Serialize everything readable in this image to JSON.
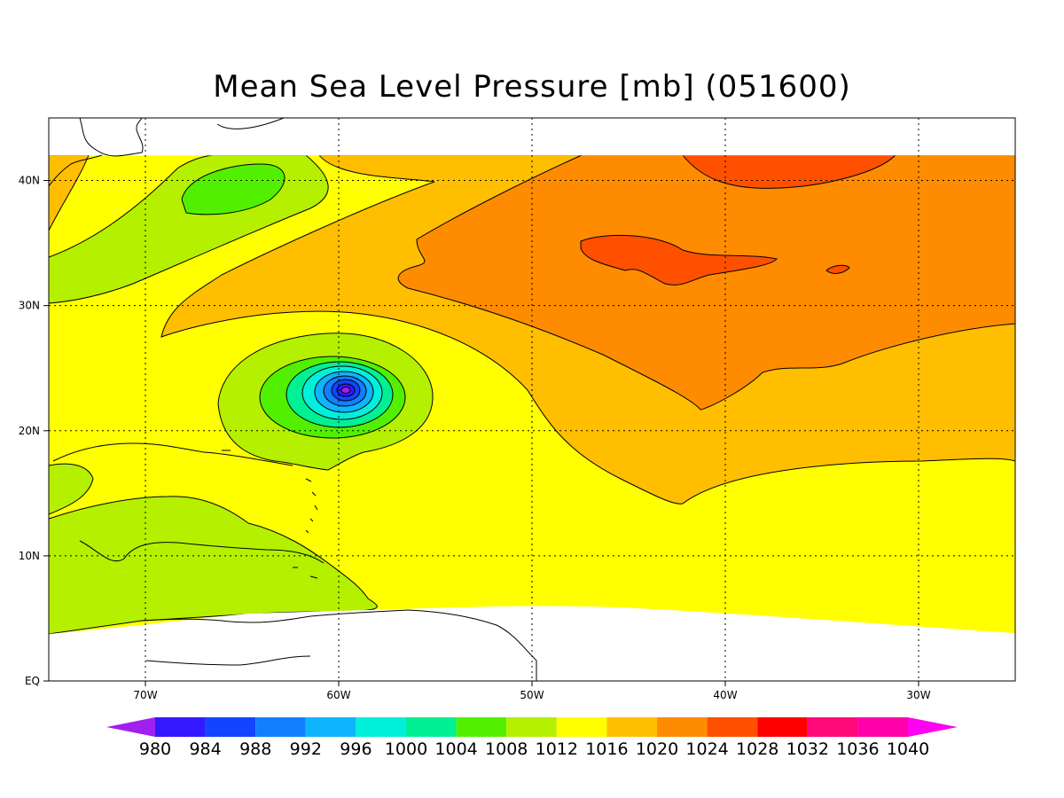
{
  "title": "Mean Sea Level Pressure [mb] (051600)",
  "map": {
    "lon_range": [
      -75,
      -25
    ],
    "lat_range": [
      0,
      45
    ],
    "data_lat_top": 42,
    "lat_ticks": [
      {
        "value": 0,
        "label": "EQ"
      },
      {
        "value": 10,
        "label": "10N"
      },
      {
        "value": 20,
        "label": "20N"
      },
      {
        "value": 30,
        "label": "30N"
      },
      {
        "value": 40,
        "label": "40N"
      }
    ],
    "lon_ticks": [
      {
        "value": -70,
        "label": "70W"
      },
      {
        "value": -60,
        "label": "60W"
      },
      {
        "value": -50,
        "label": "50W"
      },
      {
        "value": -40,
        "label": "40W"
      },
      {
        "value": -30,
        "label": "30W"
      }
    ],
    "grid": "dotted",
    "low_center": {
      "lon": -59.6,
      "lat": 23.1
    }
  },
  "colorbar": {
    "levels": [
      "980",
      "984",
      "988",
      "992",
      "996",
      "1000",
      "1004",
      "1008",
      "1012",
      "1016",
      "1020",
      "1024",
      "1028",
      "1032",
      "1036",
      "1040"
    ],
    "colors": [
      "#a020f0",
      "#3319ff",
      "#1145ff",
      "#117fff",
      "#0fb4ff",
      "#00f0dc",
      "#00f093",
      "#52f000",
      "#b4f000",
      "#ffff00",
      "#ffbe00",
      "#ff8c00",
      "#ff5000",
      "#ff0000",
      "#ff0a78",
      "#ff00aa",
      "#ff00f0"
    ]
  },
  "chart_data": {
    "type": "heatmap",
    "title": "Mean Sea Level Pressure [mb] (051600)",
    "xlabel": "",
    "ylabel": "",
    "x_ticks": [
      "70W",
      "60W",
      "50W",
      "40W",
      "30W"
    ],
    "y_ticks": [
      "EQ",
      "10N",
      "20N",
      "30N",
      "40N"
    ],
    "units": "mb",
    "contour_levels": [
      980,
      984,
      988,
      992,
      996,
      1000,
      1004,
      1008,
      1012,
      1016,
      1020,
      1024,
      1028,
      1032,
      1036,
      1040
    ],
    "features": [
      {
        "type": "low",
        "lon": -59.6,
        "lat": 23.1,
        "value": 980
      },
      {
        "type": "low",
        "lon": -65.5,
        "lat": 39.5,
        "value": 1008
      },
      {
        "type": "high",
        "lon": -38,
        "lat": 43,
        "value": 1028
      },
      {
        "type": "high",
        "lon": -45,
        "lat": 33,
        "value": 1028
      }
    ]
  }
}
